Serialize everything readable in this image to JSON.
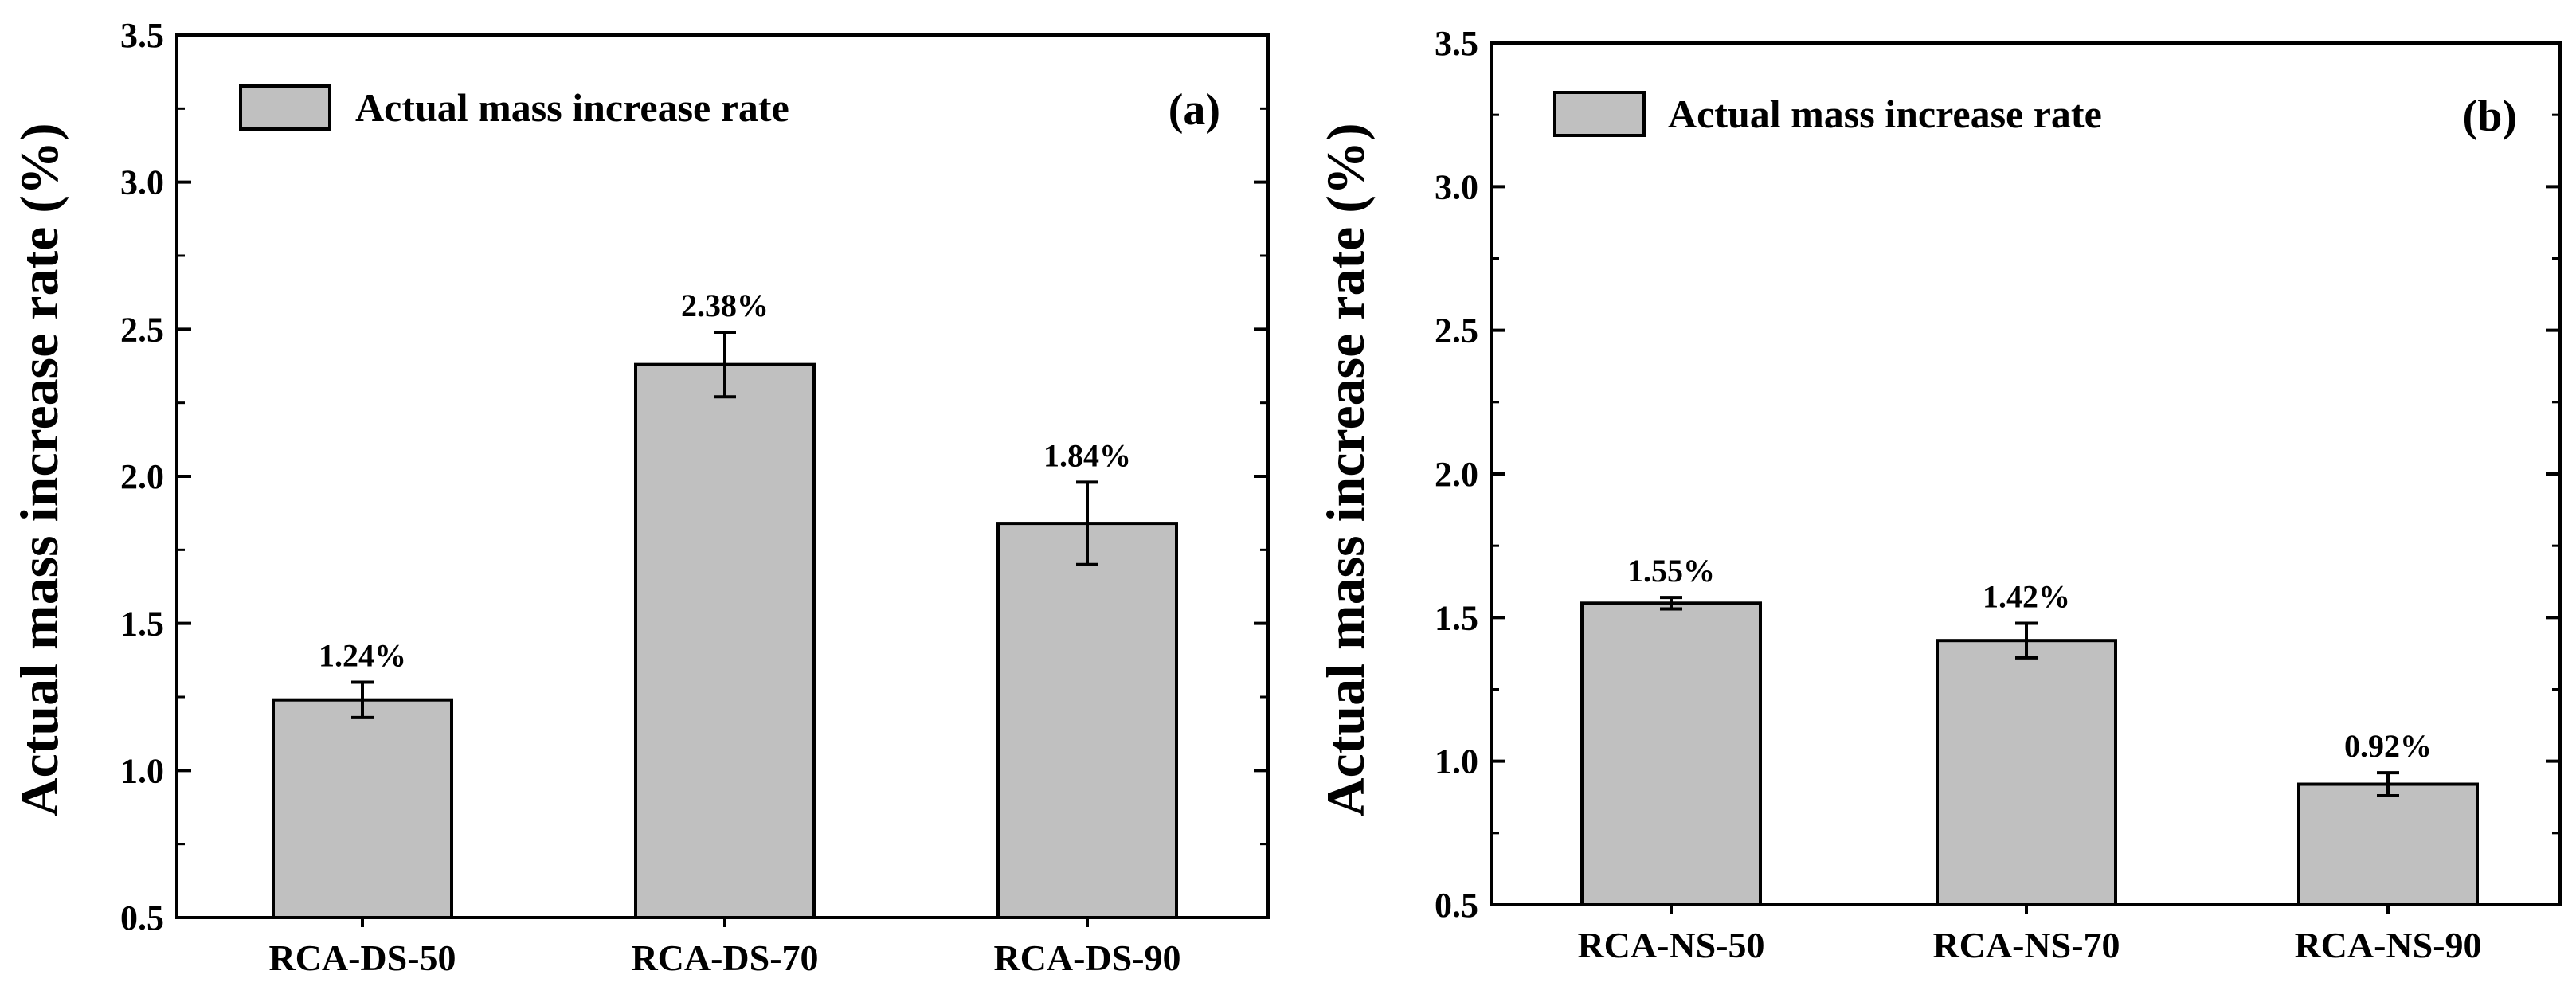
{
  "figure": {
    "bar_color": "#c0c0c0",
    "stroke_color": "#000000"
  },
  "chart_data": [
    {
      "type": "bar",
      "panel": "(a)",
      "ylabel": "Actual mass increase rate (%)",
      "xlabel": "",
      "ylim": [
        0.5,
        3.5
      ],
      "y_ticks": [
        "0.5",
        "1.0",
        "1.5",
        "2.0",
        "2.5",
        "3.0",
        "3.5"
      ],
      "legend": "Actual mass increase rate",
      "legend_position": "top-left",
      "categories": [
        "RCA-DS-50",
        "RCA-DS-70",
        "RCA-DS-90"
      ],
      "values": [
        1.24,
        2.38,
        1.84
      ],
      "errors": [
        0.06,
        0.11,
        0.14
      ],
      "labels": [
        "1.24%",
        "2.38%",
        "1.84%"
      ]
    },
    {
      "type": "bar",
      "panel": "(b)",
      "ylabel": "Actual mass increase rate (%)",
      "xlabel": "",
      "ylim": [
        0.5,
        3.5
      ],
      "y_ticks": [
        "0.5",
        "1.0",
        "1.5",
        "2.0",
        "2.5",
        "3.0",
        "3.5"
      ],
      "legend": "Actual mass increase rate",
      "legend_position": "top-left",
      "categories": [
        "RCA-NS-50",
        "RCA-NS-70",
        "RCA-NS-90"
      ],
      "values": [
        1.55,
        1.42,
        0.92
      ],
      "errors": [
        0.02,
        0.06,
        0.04
      ],
      "labels": [
        "1.55%",
        "1.42%",
        "0.92%"
      ]
    }
  ]
}
